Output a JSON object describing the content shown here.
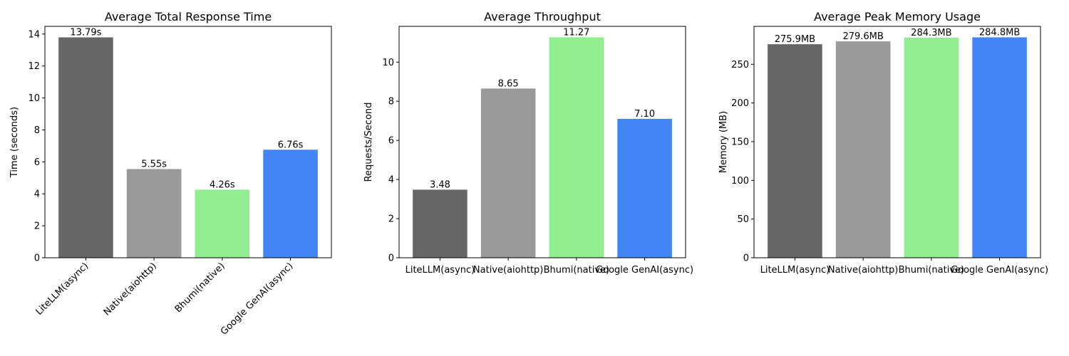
{
  "chart_data": [
    {
      "type": "bar",
      "title": "Average Total Response Time",
      "xlabel": "",
      "ylabel": "Time (seconds)",
      "categories": [
        "LiteLLM(async)",
        "Native(aiohttp)",
        "Bhumi(native)",
        "Google GenAI(async)"
      ],
      "values": [
        13.79,
        5.55,
        4.26,
        6.76
      ],
      "value_labels": [
        "13.79s",
        "5.55s",
        "4.26s",
        "6.76s"
      ],
      "colors": [
        "#666666",
        "#999999",
        "#90ee90",
        "#4285f4"
      ],
      "ylim": [
        0,
        14.48
      ],
      "yticks": [
        0,
        2,
        4,
        6,
        8,
        10,
        12,
        14
      ],
      "ytick_labels": [
        "0",
        "2",
        "4",
        "6",
        "8",
        "10",
        "12",
        "14"
      ],
      "xtick_rotation": 45,
      "grid": false,
      "legend": "none"
    },
    {
      "type": "bar",
      "title": "Average Throughput",
      "xlabel": "",
      "ylabel": "Requests/Second",
      "categories": [
        "LiteLLM(async)",
        "Native(aiohttp)",
        "Bhumi(native)",
        "Google GenAI(async)"
      ],
      "values": [
        3.48,
        8.65,
        11.27,
        7.1
      ],
      "value_labels": [
        "3.48",
        "8.65",
        "11.27",
        "7.10"
      ],
      "colors": [
        "#666666",
        "#999999",
        "#90ee90",
        "#4285f4"
      ],
      "ylim": [
        0,
        11.83
      ],
      "yticks": [
        0,
        2,
        4,
        6,
        8,
        10
      ],
      "ytick_labels": [
        "0",
        "2",
        "4",
        "6",
        "8",
        "10"
      ],
      "xtick_rotation": 0,
      "grid": false,
      "legend": "none"
    },
    {
      "type": "bar",
      "title": "Average Peak Memory Usage",
      "xlabel": "",
      "ylabel": "Memory (MB)",
      "categories": [
        "LiteLLM(async)",
        "Native(aiohttp)",
        "Bhumi(native)",
        "Google GenAI(async)"
      ],
      "values": [
        275.9,
        279.6,
        284.3,
        284.8
      ],
      "value_labels": [
        "275.9MB",
        "279.6MB",
        "284.3MB",
        "284.8MB"
      ],
      "colors": [
        "#666666",
        "#999999",
        "#90ee90",
        "#4285f4"
      ],
      "ylim": [
        0,
        299.0
      ],
      "yticks": [
        0,
        50,
        100,
        150,
        200,
        250
      ],
      "ytick_labels": [
        "0",
        "50",
        "100",
        "150",
        "200",
        "250"
      ],
      "xtick_rotation": 0,
      "grid": false,
      "legend": "none"
    }
  ]
}
